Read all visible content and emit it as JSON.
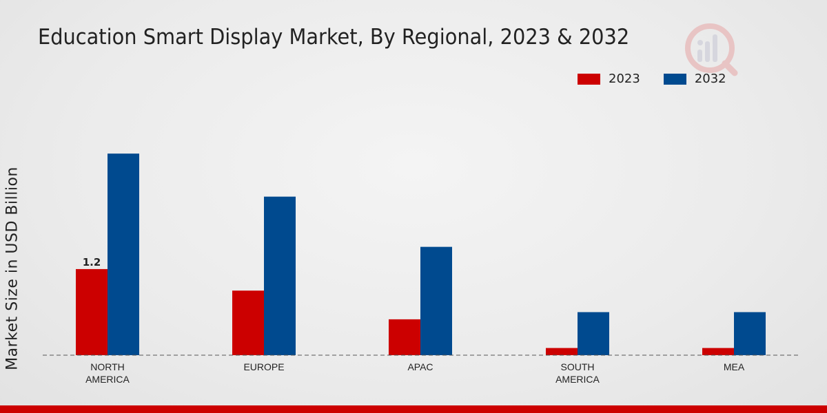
{
  "colors": {
    "series_2023": "#cc0000",
    "series_2032": "#004a8f",
    "bottom_bar": "#cc0000"
  },
  "chart_data": {
    "type": "bar",
    "title": "Education Smart Display Market, By Regional, 2023 & 2032",
    "ylabel": "Market Size in USD Billion",
    "xlabel": "",
    "categories": [
      "NORTH\nAMERICA",
      "EUROPE",
      "APAC",
      "SOUTH\nAMERICA",
      "MEA"
    ],
    "series": [
      {
        "name": "2023",
        "values": [
          1.2,
          0.9,
          0.5,
          0.1,
          0.1
        ]
      },
      {
        "name": "2032",
        "values": [
          2.81,
          2.21,
          1.51,
          0.6,
          0.6
        ]
      }
    ],
    "data_labels": [
      {
        "series": 0,
        "index": 0,
        "text": "1.2"
      }
    ],
    "ylim": [
      0,
      4.5
    ],
    "grid": false,
    "legend": "top-right"
  },
  "logo": {
    "icon": "bar-chart-magnifier-icon"
  }
}
